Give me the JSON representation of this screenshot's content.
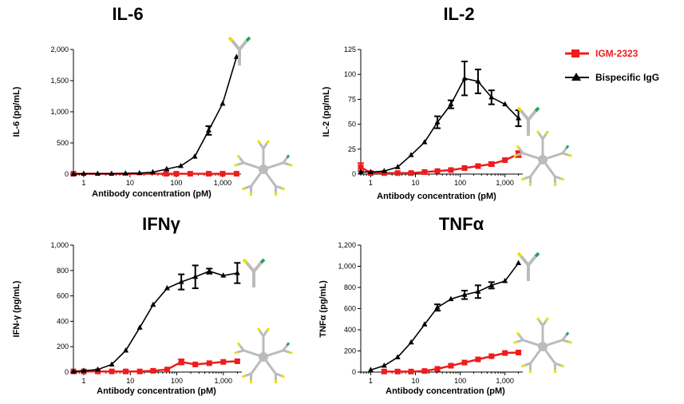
{
  "colors": {
    "igm": "#ee1c1c",
    "igg": "#000000",
    "heavy_chain": "#bbbbbb",
    "light_tip": "#e8e000",
    "binding_tip": "#29a35a"
  },
  "legend": {
    "position": "top-right",
    "entries": [
      "IGM-2323",
      "Bispecific IgG"
    ]
  },
  "chart_data": [
    {
      "type": "line",
      "title": "IL-6",
      "xlabel": "Antibody concentration (pM)",
      "ylabel": "IL-6 (pg/mL)",
      "x_scale": "log",
      "xlim": [
        0.6,
        2500
      ],
      "ylim": [
        0,
        2000
      ],
      "x_tick_labels": [
        "1",
        "10",
        "100",
        "1,000"
      ],
      "y_tick_labels": [
        "0",
        "500",
        "1,000",
        "1,500",
        "2,000"
      ],
      "series": [
        {
          "name": "IGM-2323",
          "marker": "square",
          "x": [
            0.6,
            60,
            100,
            200,
            500,
            1000,
            2000
          ],
          "y": [
            5,
            5,
            5,
            5,
            5,
            5,
            5
          ]
        },
        {
          "name": "Bispecific IgG",
          "marker": "triangle",
          "x": [
            0.6,
            1,
            2,
            4,
            8,
            16,
            31,
            62,
            125,
            250,
            500,
            1000,
            2000
          ],
          "y": [
            0,
            5,
            5,
            5,
            10,
            15,
            30,
            80,
            130,
            280,
            700,
            1130,
            1880
          ],
          "err": [
            0,
            0,
            0,
            0,
            0,
            0,
            0,
            0,
            0,
            0,
            70,
            0,
            0
          ]
        }
      ],
      "icon_igg": "bispecific-igg-icon",
      "icon_igm": "igm-icon"
    },
    {
      "type": "line",
      "title": "IL-2",
      "xlabel": "Antibody concentration (pM)",
      "ylabel": "IL-2 (pg/mL)",
      "x_scale": "log",
      "xlim": [
        0.6,
        2500
      ],
      "ylim": [
        0,
        125
      ],
      "x_tick_labels": [
        "1",
        "10",
        "100",
        "1,000"
      ],
      "y_tick_labels": [
        "0",
        "25",
        "50",
        "75",
        "100",
        "125"
      ],
      "series": [
        {
          "name": "IGM-2323",
          "marker": "square",
          "x": [
            0.6,
            1,
            2,
            4,
            8,
            16,
            31,
            62,
            125,
            250,
            500,
            1000,
            2000
          ],
          "y": [
            7,
            1,
            1,
            1,
            1,
            2,
            3,
            4,
            6,
            8,
            10,
            14,
            20
          ],
          "err": [
            4,
            0,
            0,
            0,
            0,
            0,
            0,
            0,
            0,
            0,
            2,
            0,
            3
          ]
        },
        {
          "name": "Bispecific IgG",
          "marker": "triangle",
          "x": [
            0.6,
            1,
            2,
            4,
            8,
            16,
            31,
            62,
            125,
            250,
            500,
            1000,
            2000
          ],
          "y": [
            2,
            2,
            3,
            7,
            19,
            32,
            52,
            70,
            96,
            93,
            77,
            70,
            56
          ],
          "err": [
            0,
            0,
            0,
            0,
            0,
            0,
            6,
            4,
            17,
            12,
            7,
            0,
            8
          ]
        }
      ],
      "icon_igg": "bispecific-igg-icon",
      "icon_igm": "igm-icon"
    },
    {
      "type": "line",
      "title": "IFNγ",
      "xlabel": "Antibody concentration (pM)",
      "ylabel": "IFN-γ (pg/mL)",
      "x_scale": "log",
      "xlim": [
        0.6,
        2500
      ],
      "ylim": [
        0,
        1000
      ],
      "x_tick_labels": [
        "1",
        "10",
        "100",
        "1,000"
      ],
      "y_tick_labels": [
        "0",
        "200",
        "400",
        "600",
        "800",
        "1,000"
      ],
      "series": [
        {
          "name": "IGM-2323",
          "marker": "square",
          "x": [
            0.6,
            1,
            2,
            4,
            8,
            16,
            31,
            62,
            125,
            250,
            500,
            1000,
            2000
          ],
          "y": [
            5,
            5,
            5,
            5,
            5,
            5,
            10,
            20,
            80,
            60,
            70,
            80,
            85
          ],
          "err": [
            0,
            0,
            0,
            0,
            0,
            0,
            0,
            0,
            20,
            0,
            0,
            0,
            0
          ]
        },
        {
          "name": "Bispecific IgG",
          "marker": "triangle",
          "x": [
            0.6,
            1,
            2,
            4,
            8,
            16,
            31,
            62,
            125,
            250,
            500,
            1000,
            2000
          ],
          "y": [
            5,
            10,
            20,
            60,
            170,
            350,
            530,
            660,
            710,
            750,
            795,
            760,
            780
          ],
          "err": [
            0,
            0,
            0,
            0,
            0,
            0,
            0,
            0,
            60,
            90,
            20,
            0,
            80
          ]
        }
      ],
      "icon_igg": "bispecific-igg-icon",
      "icon_igm": "igm-icon"
    },
    {
      "type": "line",
      "title": "TNFα",
      "xlabel": "Antibody concentration (pM)",
      "ylabel": "TNFα (pg/mL)",
      "x_scale": "log",
      "xlim": [
        0.6,
        2500
      ],
      "ylim": [
        0,
        1200
      ],
      "x_tick_labels": [
        "1",
        "10",
        "100",
        "1,000"
      ],
      "y_tick_labels": [
        "0",
        "200",
        "400",
        "600",
        "800",
        "1,000",
        "1,200"
      ],
      "series": [
        {
          "name": "IGM-2323",
          "marker": "square",
          "x": [
            2,
            4,
            8,
            16,
            31,
            62,
            125,
            250,
            500,
            1000,
            2000
          ],
          "y": [
            5,
            5,
            5,
            10,
            30,
            60,
            90,
            120,
            150,
            180,
            185
          ]
        },
        {
          "name": "Bispecific IgG",
          "marker": "triangle",
          "x": [
            1,
            2,
            4,
            8,
            16,
            31,
            62,
            125,
            250,
            500,
            1000,
            2000
          ],
          "y": [
            20,
            60,
            140,
            280,
            450,
            610,
            690,
            730,
            760,
            820,
            860,
            1030
          ],
          "err": [
            0,
            0,
            0,
            0,
            0,
            30,
            0,
            40,
            60,
            30,
            0,
            0
          ]
        }
      ],
      "icon_igg": "bispecific-igg-icon",
      "icon_igm": "igm-icon"
    }
  ]
}
